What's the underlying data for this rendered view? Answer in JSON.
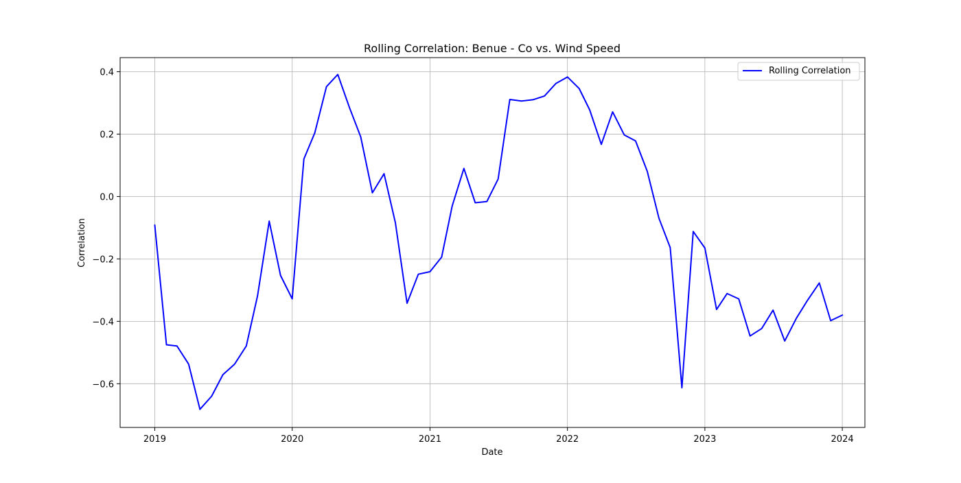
{
  "chart_data": {
    "type": "line",
    "title": "Rolling Correlation: Benue - Co vs. Wind Speed",
    "xlabel": "Date",
    "ylabel": "Correlation",
    "x_ticks": [
      "2019",
      "2020",
      "2021",
      "2022",
      "2023",
      "2024"
    ],
    "y_ticks": [
      "−0.6",
      "−0.4",
      "−0.2",
      "0.0",
      "0.2",
      "0.4"
    ],
    "y_tick_values": [
      -0.6,
      -0.4,
      -0.2,
      0.0,
      0.2,
      0.4
    ],
    "ylim": [
      -0.74,
      0.445
    ],
    "xlim": [
      "2018-10-01",
      "2024-03-01"
    ],
    "grid": true,
    "legend_position": "upper right",
    "series": [
      {
        "name": "Rolling Correlation",
        "color": "#0000ff",
        "x": [
          "2019-01",
          "2019-02",
          "2019-03",
          "2019-04",
          "2019-05",
          "2019-06",
          "2019-07",
          "2019-08",
          "2019-09",
          "2019-10",
          "2019-11",
          "2019-12",
          "2020-01",
          "2020-02",
          "2020-03",
          "2020-04",
          "2020-05",
          "2020-06",
          "2020-07",
          "2020-08",
          "2020-09",
          "2020-10",
          "2020-11",
          "2020-12",
          "2021-01",
          "2021-02",
          "2021-03",
          "2021-04",
          "2021-05",
          "2021-06",
          "2021-07",
          "2021-08",
          "2021-09",
          "2021-10",
          "2021-11",
          "2021-12",
          "2022-01",
          "2022-02",
          "2022-03",
          "2022-04",
          "2022-05",
          "2022-06",
          "2022-07",
          "2022-08",
          "2022-09",
          "2022-10",
          "2022-11",
          "2022-12",
          "2023-01",
          "2023-02",
          "2023-03",
          "2023-04",
          "2023-05",
          "2023-06",
          "2023-07",
          "2023-08",
          "2023-09",
          "2023-10",
          "2023-11",
          "2023-12",
          "2024-01"
        ],
        "values": [
          -0.092,
          -0.475,
          -0.479,
          -0.537,
          -0.682,
          -0.64,
          -0.571,
          -0.537,
          -0.479,
          -0.318,
          -0.079,
          -0.253,
          -0.328,
          0.12,
          0.204,
          0.352,
          0.391,
          0.285,
          0.191,
          0.012,
          0.073,
          -0.084,
          -0.342,
          -0.249,
          -0.241,
          -0.194,
          -0.03,
          0.09,
          -0.02,
          -0.016,
          0.056,
          0.311,
          0.306,
          0.31,
          0.322,
          0.362,
          0.383,
          0.346,
          0.278,
          0.167,
          0.271,
          0.197,
          0.178,
          0.081,
          -0.07,
          -0.164,
          -0.613,
          -0.112,
          -0.165,
          -0.362,
          -0.311,
          -0.328,
          -0.447,
          -0.423,
          -0.364,
          -0.463,
          -0.39,
          -0.332,
          -0.277,
          -0.398,
          -0.38
        ]
      }
    ]
  }
}
